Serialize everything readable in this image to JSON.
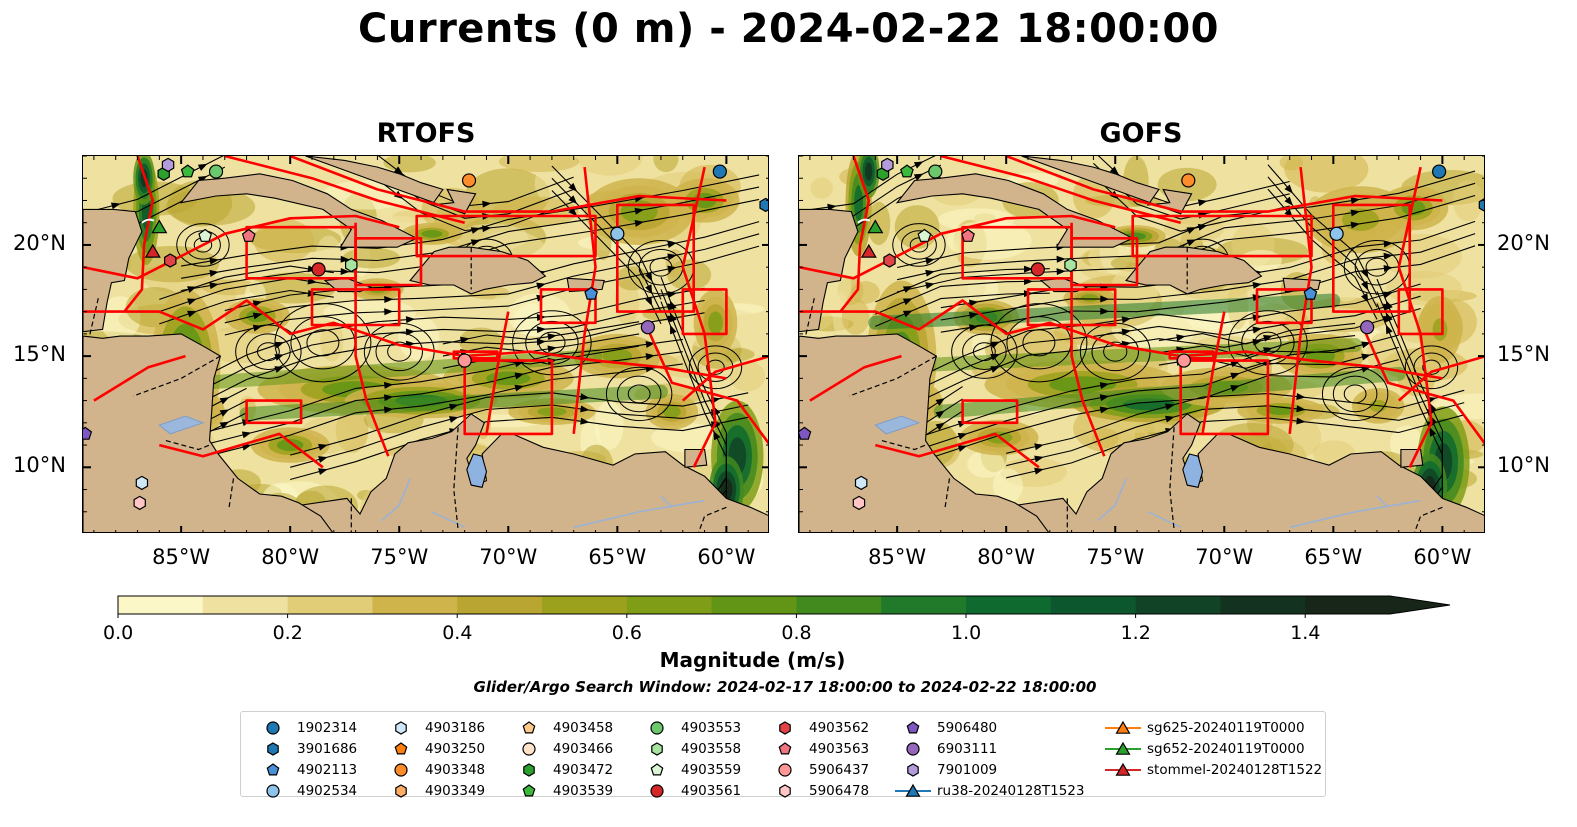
{
  "title": "Currents (0 m) - 2024-02-22 18:00:00",
  "panels": [
    {
      "title": "RTOFS"
    },
    {
      "title": "GOFS"
    }
  ],
  "axes": {
    "x_ticks": [
      "85°W",
      "80°W",
      "75°W",
      "70°W",
      "65°W",
      "60°W"
    ],
    "y_ticks": [
      "20°N",
      "15°N",
      "10°N"
    ],
    "lon_range": [
      -89.5,
      -58
    ],
    "lat_range": [
      7,
      24
    ]
  },
  "colorbar": {
    "label": "Magnitude (m/s)",
    "ticks": [
      "0.0",
      "0.2",
      "0.4",
      "0.6",
      "0.8",
      "1.0",
      "1.2",
      "1.4"
    ],
    "colors": [
      "#fcf7c6",
      "#efe2a1",
      "#e1cc78",
      "#cfb44c",
      "#b9a531",
      "#9ba11c",
      "#7f9d16",
      "#629515",
      "#438a1e",
      "#217a2a",
      "#0f6a2f",
      "#0c572d",
      "#114427",
      "#133320",
      "#172619"
    ]
  },
  "search_window": "Glider/Argo Search Window: 2024-02-17 18:00:00 to 2024-02-22 18:00:00",
  "legend": [
    {
      "label": "1902314",
      "marker": "circle",
      "color": "#1f77b4"
    },
    {
      "label": "3901686",
      "marker": "hexagon",
      "color": "#1f77b4"
    },
    {
      "label": "4902113",
      "marker": "pentagon",
      "color": "#4a90d9"
    },
    {
      "label": "4902534",
      "marker": "circle",
      "color": "#8ec3ea"
    },
    {
      "label": "4903186",
      "marker": "hexagon",
      "color": "#cfe8f8"
    },
    {
      "label": "4903250",
      "marker": "pentagon",
      "color": "#ff7f0e"
    },
    {
      "label": "4903348",
      "marker": "circle",
      "color": "#ff8c2a"
    },
    {
      "label": "4903349",
      "marker": "hexagon",
      "color": "#ffad66"
    },
    {
      "label": "4903458",
      "marker": "pentagon",
      "color": "#ffc98a"
    },
    {
      "label": "4903466",
      "marker": "circle",
      "color": "#ffe3c8"
    },
    {
      "label": "4903472",
      "marker": "hexagon",
      "color": "#2ca02c"
    },
    {
      "label": "4903539",
      "marker": "pentagon",
      "color": "#3cb83c"
    },
    {
      "label": "4903553",
      "marker": "circle",
      "color": "#6cc86c"
    },
    {
      "label": "4903558",
      "marker": "hexagon",
      "color": "#a8e4a0"
    },
    {
      "label": "4903559",
      "marker": "pentagon",
      "color": "#d9f5d3"
    },
    {
      "label": "4903561",
      "marker": "circle",
      "color": "#d62728"
    },
    {
      "label": "4903562",
      "marker": "hexagon",
      "color": "#e04446"
    },
    {
      "label": "4903563",
      "marker": "pentagon",
      "color": "#f07580"
    },
    {
      "label": "5906437",
      "marker": "circle",
      "color": "#ff9896"
    },
    {
      "label": "5906478",
      "marker": "hexagon",
      "color": "#ffc6c5"
    },
    {
      "label": "5906480",
      "marker": "pentagon",
      "color": "#7e57c2"
    },
    {
      "label": "6903111",
      "marker": "circle",
      "color": "#9467bd"
    },
    {
      "label": "7901009",
      "marker": "hexagon",
      "color": "#b49bdc"
    },
    {
      "label": "ru38-20240128T1523",
      "marker": "triangle-line",
      "color": "#1f77b4"
    },
    {
      "label": "sg625-20240119T0000",
      "marker": "triangle-line",
      "color": "#ff7f0e"
    },
    {
      "label": "sg652-20240119T0000",
      "marker": "triangle-line",
      "color": "#2ca02c"
    },
    {
      "label": "stommel-20240128T1522",
      "marker": "triangle-line",
      "color": "#d62728"
    }
  ],
  "floats": [
    {
      "id": "1902314",
      "lon": -60.3,
      "lat": 23.3
    },
    {
      "id": "3901686",
      "lon": -58.2,
      "lat": 21.8
    },
    {
      "id": "4902113",
      "lon": -66.2,
      "lat": 17.8
    },
    {
      "id": "4902534",
      "lon": -65.0,
      "lat": 20.5
    },
    {
      "id": "4903186",
      "lon": -86.8,
      "lat": 9.3
    },
    {
      "id": "4903348",
      "lon": -71.8,
      "lat": 22.9
    },
    {
      "id": "4903472",
      "lon": -85.8,
      "lat": 23.2
    },
    {
      "id": "4903539",
      "lon": -84.7,
      "lat": 23.3
    },
    {
      "id": "4903553",
      "lon": -83.4,
      "lat": 23.3
    },
    {
      "id": "4903558",
      "lon": -77.2,
      "lat": 19.1
    },
    {
      "id": "4903559",
      "lon": -83.9,
      "lat": 20.4
    },
    {
      "id": "4903561",
      "lon": -78.7,
      "lat": 18.9
    },
    {
      "id": "4903562",
      "lon": -85.5,
      "lat": 19.3
    },
    {
      "id": "4903563",
      "lon": -81.9,
      "lat": 20.4
    },
    {
      "id": "5906437",
      "lon": -72.0,
      "lat": 14.8
    },
    {
      "id": "5906478",
      "lon": -86.9,
      "lat": 8.4
    },
    {
      "id": "5906480",
      "lon": -89.4,
      "lat": 11.5
    },
    {
      "id": "6903111",
      "lon": -63.6,
      "lat": 16.3
    },
    {
      "id": "7901009",
      "lon": -85.6,
      "lat": 23.6
    }
  ],
  "gliders": [
    {
      "id": "sg652-20240119T0000",
      "lon": -86.0,
      "lat": 20.8
    },
    {
      "id": "stommel-20240128T1522",
      "lon": -86.3,
      "lat": 19.7
    }
  ]
}
